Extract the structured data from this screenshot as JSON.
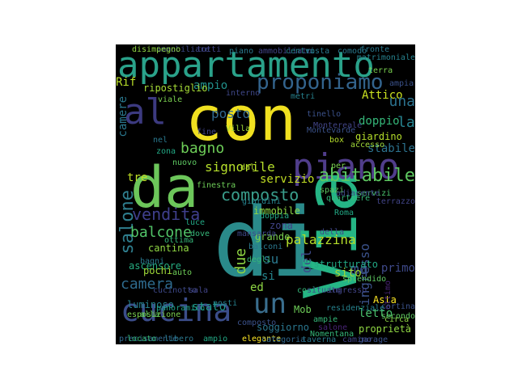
{
  "words": [
    {
      "text": "di",
      "color": "#2a8a8a"
    },
    {
      "text": "con",
      "color": "#f0e020"
    },
    {
      "text": "da",
      "color": "#6cc65a"
    },
    {
      "text": "Via",
      "color": "#25b585"
    },
    {
      "text": "appartamento",
      "color": "#2aa28a"
    },
    {
      "text": "cucina",
      "color": "#3b4d8a"
    },
    {
      "text": "piano",
      "color": "#503d8b"
    },
    {
      "text": "al",
      "color": "#3c3a80"
    },
    {
      "text": "un",
      "color": "#3a6e8e"
    },
    {
      "text": "proponiamo",
      "color": "#33648d"
    },
    {
      "text": "composto",
      "color": "#3a9e8c"
    },
    {
      "text": "abitabile",
      "color": "#5ec861"
    },
    {
      "text": "vendita",
      "color": "#3f3f8c"
    },
    {
      "text": "salone",
      "color": "#2f7e8e"
    },
    {
      "text": "balcone",
      "color": "#52c569"
    },
    {
      "text": "camera",
      "color": "#2e6b8e"
    },
    {
      "text": "bagno",
      "color": "#6ece58"
    },
    {
      "text": "signorile",
      "color": "#b5de2b"
    },
    {
      "text": "servizio",
      "color": "#c2df23"
    },
    {
      "text": "palazzina",
      "color": "#b5de2b"
    },
    {
      "text": "ingresso",
      "color": "#3b528b"
    },
    {
      "text": "Attico",
      "color": "#c9e020"
    },
    {
      "text": "una",
      "color": "#2c728e"
    },
    {
      "text": "la",
      "color": "#26828e"
    },
    {
      "text": "mq",
      "color": "#3b528b"
    },
    {
      "text": "due",
      "color": "#90d743"
    },
    {
      "text": "ed",
      "color": "#8fd744"
    },
    {
      "text": "si",
      "color": "#25858e"
    },
    {
      "text": "su",
      "color": "#2a788e"
    },
    {
      "text": "sito",
      "color": "#a0da39"
    },
    {
      "text": "del",
      "color": "#3e4989"
    },
    {
      "text": "tre",
      "color": "#c0df25"
    },
    {
      "text": "ampio",
      "color": "#21918c"
    },
    {
      "text": "posto",
      "color": "#31688e"
    },
    {
      "text": "ripostiglio",
      "color": "#a5db36"
    },
    {
      "text": "stabile",
      "color": "#2c728e"
    },
    {
      "text": "doppio",
      "color": "#35b779"
    },
    {
      "text": "giardino",
      "color": "#b5de2b"
    },
    {
      "text": "immobile",
      "color": "#8fd744"
    },
    {
      "text": "zona",
      "color": "#414487"
    },
    {
      "text": "grande",
      "color": "#7ad151"
    },
    {
      "text": "cantina",
      "color": "#90d743"
    },
    {
      "text": "ascensore",
      "color": "#26ad81"
    },
    {
      "text": "luminoso",
      "color": "#26828e"
    },
    {
      "text": "stato",
      "color": "#1f988b"
    },
    {
      "text": "soggiorno",
      "color": "#2a768e"
    },
    {
      "text": "letto",
      "color": "#4ac16d"
    },
    {
      "text": "Asta",
      "color": "#fde725"
    },
    {
      "text": "Mob",
      "color": "#6ece58"
    },
    {
      "text": "ristrutturato",
      "color": "#22a884"
    },
    {
      "text": "camere",
      "color": "#2a788e"
    },
    {
      "text": "Rif",
      "color": "#b8de29"
    },
    {
      "text": "terra",
      "color": "#7ad151"
    },
    {
      "text": "box",
      "color": "#b5de2b"
    },
    {
      "text": "servizi",
      "color": "#4ac16d"
    },
    {
      "text": "spazi",
      "color": "#5ec962"
    },
    {
      "text": "pochi",
      "color": "#a0da39"
    },
    {
      "text": "auto",
      "color": "#6ece58"
    },
    {
      "text": "panoramico",
      "color": "#1fa187"
    },
    {
      "text": "ampie",
      "color": "#35b779"
    },
    {
      "text": "proprietà",
      "color": "#90d743"
    },
    {
      "text": "primo",
      "color": "#3e4989"
    },
    {
      "text": "così",
      "color": "#35b779"
    },
    {
      "text": "dal",
      "color": "#b5de2b"
    },
    {
      "text": "per",
      "color": "#7ad151"
    },
    {
      "text": "interno",
      "color": "#3f4788"
    },
    {
      "text": "finestra",
      "color": "#6ece58"
    },
    {
      "text": "elegante",
      "color": "#fde725"
    },
    {
      "text": "splendido",
      "color": "#5ec962"
    },
    {
      "text": "esposizione",
      "color": "#7ad151"
    },
    {
      "text": "ampia",
      "color": "#3b528b"
    },
    {
      "text": "matrimoniale",
      "color": "#26828e"
    },
    {
      "text": "Villa",
      "color": "#a0da39"
    },
    {
      "text": "ottimo",
      "color": "#482475"
    },
    {
      "text": "circa",
      "color": "#90d743"
    },
    {
      "text": "alla",
      "color": "#5ec962"
    },
    {
      "text": "Montereale",
      "color": "#414487"
    },
    {
      "text": "degli",
      "color": "#35b779"
    },
    {
      "text": "balconi",
      "color": "#2a788e"
    },
    {
      "text": "doppia",
      "color": "#22a884"
    },
    {
      "text": "cortina",
      "color": "#3b528b"
    },
    {
      "text": "accesso",
      "color": "#a0da39"
    },
    {
      "text": "adiacente",
      "color": "#3e4989"
    },
    {
      "text": "metri",
      "color": "#26828e"
    },
    {
      "text": "bagni",
      "color": "#2a788e"
    },
    {
      "text": "situato",
      "color": "#3e4989"
    },
    {
      "text": "Nomentana",
      "color": "#35b779"
    },
    {
      "text": "secondo",
      "color": "#5ec962"
    },
    {
      "text": "precisamente",
      "color": "#31688e"
    },
    {
      "text": "fronte",
      "color": "#2a788e"
    },
    {
      "text": "terrazzo",
      "color": "#414487"
    },
    {
      "text": "luce",
      "color": "#22a884"
    },
    {
      "text": "viale",
      "color": "#7ad151"
    },
    {
      "text": "Montevarde",
      "color": "#3b528b"
    },
    {
      "text": "ammobiliato",
      "color": "#414487"
    },
    {
      "text": "immobiliare",
      "color": "#3e4989"
    },
    {
      "text": "comodo",
      "color": "#2a788e"
    },
    {
      "text": "centro",
      "color": "#26828e"
    },
    {
      "text": "ottima",
      "color": "#35b779"
    },
    {
      "text": "tutti",
      "color": "#414487"
    },
    {
      "text": "Roma",
      "color": "#22a884"
    },
    {
      "text": "disimpegno",
      "color": "#90d743"
    },
    {
      "text": "composto",
      "color": "#3b528b"
    },
    {
      "text": "salone",
      "color": "#482475"
    },
    {
      "text": "vista",
      "color": "#2a788e"
    },
    {
      "text": "dove",
      "color": "#35b779"
    },
    {
      "text": "fine",
      "color": "#414487"
    },
    {
      "text": "posti",
      "color": "#26828e"
    },
    {
      "text": "della",
      "color": "#3e4989"
    },
    {
      "text": "nel",
      "color": "#2a788e"
    },
    {
      "text": "zona",
      "color": "#22a884"
    },
    {
      "text": "nuovo",
      "color": "#5ec962"
    },
    {
      "text": "tinello",
      "color": "#3b528b"
    },
    {
      "text": "ingresso",
      "color": "#414487"
    },
    {
      "text": "piano",
      "color": "#2a788e"
    },
    {
      "text": "cucinotto",
      "color": "#3e4989"
    },
    {
      "text": "residenziale",
      "color": "#26828e"
    },
    {
      "text": "locato",
      "color": "#35b779"
    },
    {
      "text": "camino",
      "color": "#414487"
    },
    {
      "text": "libero",
      "color": "#2a788e"
    },
    {
      "text": "ampio",
      "color": "#22a884"
    },
    {
      "text": "garage",
      "color": "#3b528b"
    },
    {
      "text": "categoria",
      "color": "#31688e"
    },
    {
      "text": "taverna",
      "color": "#2a788e"
    },
    {
      "text": "sala",
      "color": "#414487"
    },
    {
      "text": "mansarda",
      "color": "#3e4989"
    },
    {
      "text": "giardini",
      "color": "#26828e"
    },
    {
      "text": "quartiere",
      "color": "#35b779"
    }
  ]
}
